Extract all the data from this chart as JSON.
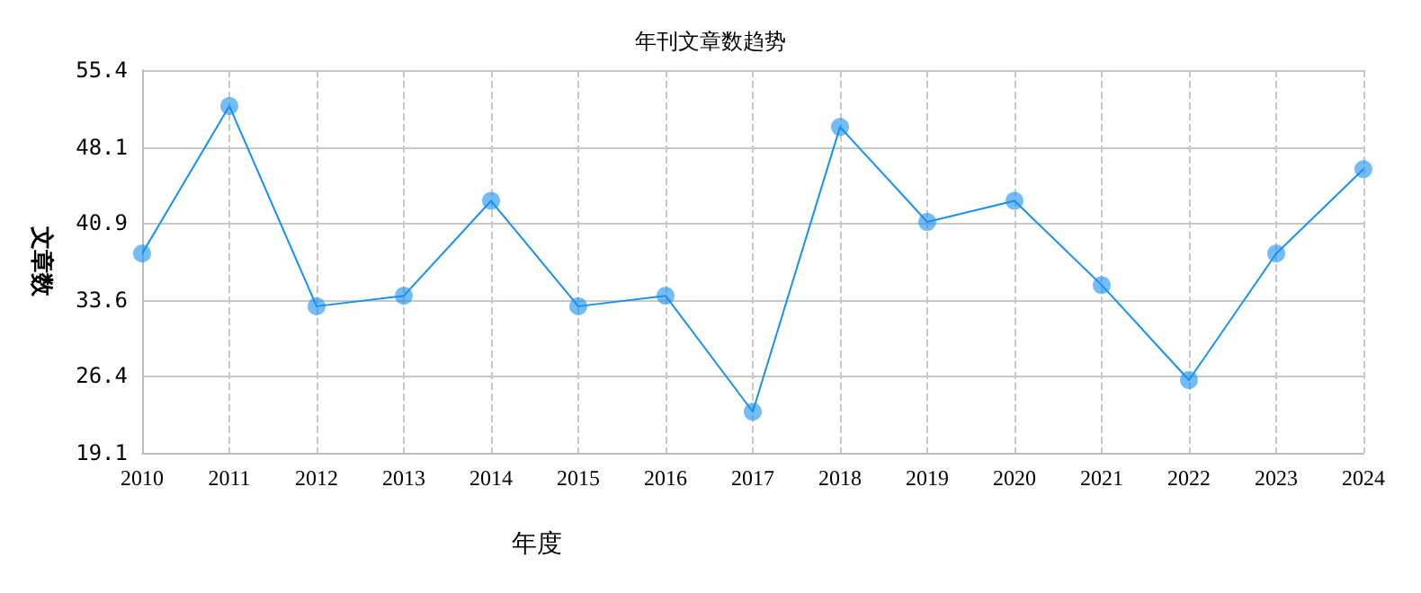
{
  "chart_data": {
    "type": "line",
    "title": "年刊文章数趋势",
    "xlabel": "年度",
    "ylabel": "文章数",
    "categories": [
      "2010",
      "2011",
      "2012",
      "2013",
      "2014",
      "2015",
      "2016",
      "2017",
      "2018",
      "2019",
      "2020",
      "2021",
      "2022",
      "2023",
      "2024"
    ],
    "series": [
      {
        "color": "#1890f0",
        "values": [
          38,
          52,
          33,
          34,
          43,
          33,
          34,
          23,
          50,
          41,
          43,
          35,
          26,
          38,
          46
        ]
      }
    ],
    "ylim": [
      19.1,
      55.4
    ],
    "yticks": [
      19.1,
      26.4,
      33.6,
      40.9,
      48.1,
      55.4
    ],
    "grid": true,
    "marker": "circle",
    "line_style": "solid"
  }
}
